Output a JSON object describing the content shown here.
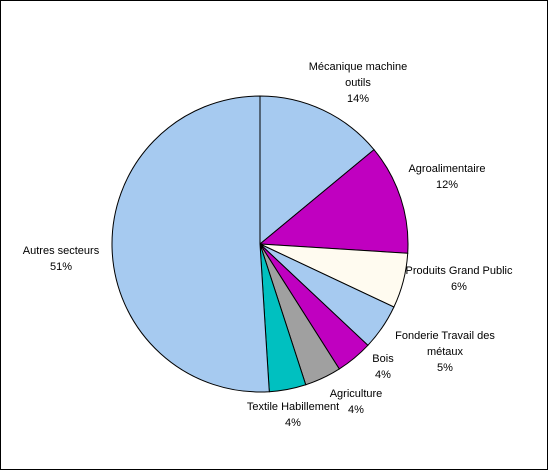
{
  "chart_data": {
    "type": "pie",
    "categories": [
      "Mécanique machine outils",
      "Agroalimentaire",
      "Produits Grand Public",
      "Fonderie Travail des métaux",
      "Bois",
      "Agriculture",
      "Textile Habillement",
      "Autres secteurs"
    ],
    "values": [
      14,
      12,
      6,
      5,
      4,
      4,
      4,
      51
    ],
    "value_labels": [
      "14%",
      "12%",
      "6%",
      "5%",
      "4%",
      "4%",
      "4%",
      "51%"
    ],
    "colors": [
      "#a6caf0",
      "#c000c0",
      "#fffbf0",
      "#a6caf0",
      "#c000c0",
      "#a0a0a0",
      "#00c0c0",
      "#a6caf0"
    ]
  }
}
